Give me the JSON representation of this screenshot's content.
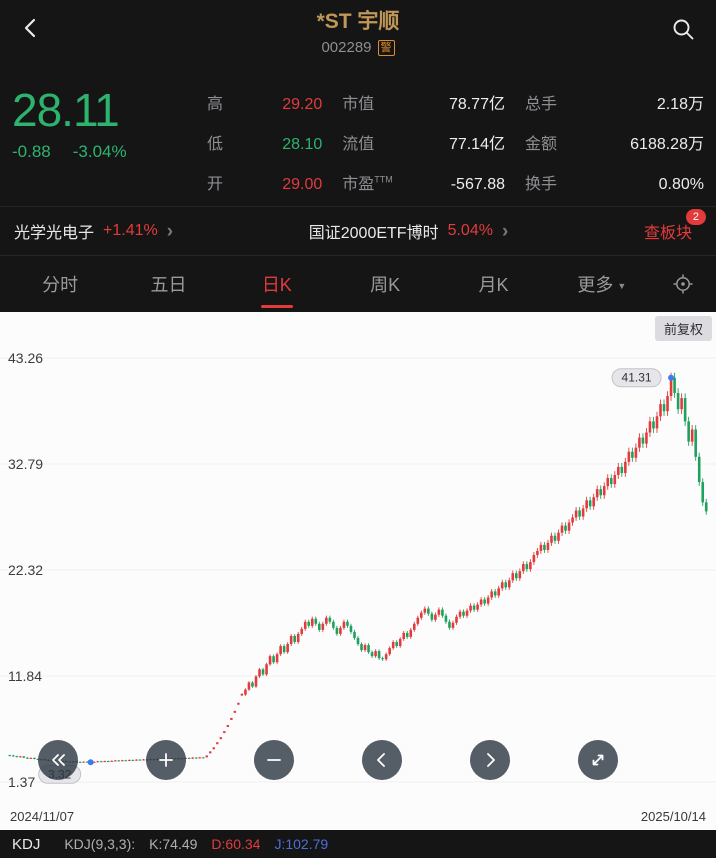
{
  "header": {
    "title": "*ST 宇顺",
    "code": "002289",
    "warning_badge": "警"
  },
  "quote": {
    "price": "28.11",
    "change": "-0.88",
    "change_pct": "-3.04%",
    "stats": [
      {
        "label": "高",
        "value": "29.20",
        "color": "red"
      },
      {
        "label": "市值",
        "value": "78.77亿",
        "color": ""
      },
      {
        "label": "总手",
        "value": "2.18万",
        "color": ""
      },
      {
        "label": "低",
        "value": "28.10",
        "color": "green"
      },
      {
        "label": "流值",
        "value": "77.14亿",
        "color": ""
      },
      {
        "label": "金额",
        "value": "6188.28万",
        "color": ""
      },
      {
        "label": "开",
        "value": "29.00",
        "color": "red"
      },
      {
        "label": "市盈",
        "sup": "TTM",
        "value": "-567.88",
        "color": ""
      },
      {
        "label": "换手",
        "value": "0.80%",
        "color": ""
      }
    ]
  },
  "sector_bar": {
    "sector": {
      "name": "光学光电子",
      "change": "+1.41%"
    },
    "etf": {
      "name": "国证2000ETF博时",
      "change": "5.04%"
    },
    "board_button": {
      "label": "查板块",
      "badge": "2"
    }
  },
  "tabs": {
    "items": [
      {
        "label": "分时"
      },
      {
        "label": "五日"
      },
      {
        "label": "日K",
        "active": true
      },
      {
        "label": "周K"
      },
      {
        "label": "月K"
      },
      {
        "label": "更多",
        "caret": true
      }
    ]
  },
  "chart": {
    "adjust_label": "前复权",
    "y_ticks": [
      "43.26",
      "32.79",
      "22.32",
      "11.84",
      "1.37"
    ],
    "x_start": "2024/11/07",
    "x_end": "2025/10/14",
    "max_label": "41.31",
    "min_label": "3.32"
  },
  "chart_data": {
    "type": "candlestick",
    "y_min": 1.37,
    "y_max": 43.26,
    "dotted_range": [
      56,
      66
    ],
    "closes": [
      4.0,
      3.92,
      3.85,
      3.9,
      3.78,
      3.7,
      3.75,
      3.65,
      3.58,
      3.62,
      3.55,
      3.48,
      3.52,
      3.45,
      3.4,
      3.44,
      3.38,
      3.35,
      3.4,
      3.36,
      3.33,
      3.38,
      3.34,
      3.32,
      3.36,
      3.42,
      3.38,
      3.44,
      3.4,
      3.46,
      3.5,
      3.45,
      3.52,
      3.48,
      3.55,
      3.5,
      3.58,
      3.54,
      3.6,
      3.56,
      3.62,
      3.58,
      3.65,
      3.6,
      3.68,
      3.64,
      3.7,
      3.66,
      3.72,
      3.68,
      3.75,
      3.7,
      3.78,
      3.74,
      3.8,
      3.76,
      3.9,
      4.3,
      4.7,
      5.2,
      5.7,
      6.3,
      6.9,
      7.6,
      8.3,
      9.1,
      10.0,
      10.5,
      11.2,
      10.8,
      11.8,
      12.5,
      12.0,
      13.0,
      13.8,
      13.2,
      14.0,
      14.8,
      14.2,
      15.0,
      15.8,
      15.2,
      16.0,
      16.5,
      17.2,
      16.8,
      17.5,
      17.0,
      16.4,
      17.0,
      17.6,
      17.2,
      16.6,
      16.0,
      16.6,
      17.2,
      16.8,
      16.2,
      15.6,
      15.0,
      14.4,
      14.9,
      14.2,
      13.8,
      14.3,
      13.6,
      13.5,
      14.0,
      14.6,
      15.2,
      14.8,
      15.5,
      16.1,
      15.7,
      16.4,
      17.0,
      17.6,
      18.1,
      18.5,
      18.0,
      17.4,
      17.9,
      18.4,
      17.8,
      17.2,
      16.6,
      17.1,
      17.7,
      18.2,
      17.8,
      18.3,
      18.8,
      18.4,
      18.9,
      19.4,
      19.0,
      19.6,
      20.2,
      19.8,
      20.5,
      21.1,
      20.6,
      21.3,
      22.0,
      21.5,
      22.2,
      22.9,
      22.4,
      23.1,
      23.8,
      24.2,
      24.8,
      24.3,
      25.0,
      25.7,
      25.2,
      26.0,
      26.7,
      26.2,
      27.0,
      27.5,
      28.2,
      27.6,
      28.4,
      29.2,
      28.6,
      29.5,
      30.3,
      29.7,
      30.6,
      31.4,
      30.8,
      31.7,
      32.5,
      31.9,
      33.0,
      34.0,
      33.4,
      34.4,
      35.4,
      34.8,
      35.9,
      37.0,
      36.3,
      37.5,
      38.7,
      38.0,
      39.5,
      41.31,
      39.8,
      38.2,
      39.3,
      37.0,
      35.0,
      36.2,
      33.5,
      31.0,
      29.0,
      28.11
    ]
  },
  "kdj": {
    "selector": "KDJ",
    "formula": "KDJ(9,3,3):",
    "k": "K:74.49",
    "d": "D:60.34",
    "j": "J:102.79"
  },
  "colors": {
    "up": "#e23b3c",
    "down": "#1fa15e",
    "dot": "#3f7bf0",
    "price_green": "#2db36e",
    "title_gold": "#c09757",
    "badge_orange": "#e08a2e"
  },
  "icons": {
    "header": [
      "back",
      "search"
    ],
    "tabbar": [
      "caret-down",
      "indicator-settings"
    ],
    "chart_controls": [
      "fast-rewind",
      "zoom-in",
      "zoom-out",
      "pan-left",
      "pan-right",
      "fullscreen"
    ]
  }
}
